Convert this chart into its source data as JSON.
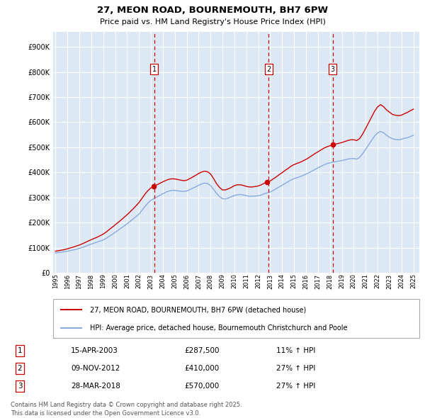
{
  "title": "27, MEON ROAD, BOURNEMOUTH, BH7 6PW",
  "subtitle": "Price paid vs. HM Land Registry's House Price Index (HPI)",
  "ytick_vals": [
    0,
    100000,
    200000,
    300000,
    400000,
    500000,
    600000,
    700000,
    800000,
    900000
  ],
  "ylim": [
    0,
    960000
  ],
  "xlim_start": 1994.8,
  "xlim_end": 2025.5,
  "plot_bg_color": "#dce9f5",
  "grid_color": "#ffffff",
  "sale_points": [
    {
      "num": 1,
      "year": 2003.29,
      "price": 287500,
      "date": "15-APR-2003",
      "pct": "11%",
      "dir": "↑"
    },
    {
      "num": 2,
      "year": 2012.86,
      "price": 410000,
      "date": "09-NOV-2012",
      "pct": "27%",
      "dir": "↑"
    },
    {
      "num": 3,
      "year": 2018.24,
      "price": 570000,
      "date": "28-MAR-2018",
      "pct": "27%",
      "dir": "↑"
    }
  ],
  "line_color_price": "#cc0000",
  "line_color_hpi": "#88aadd",
  "legend_label_price": "27, MEON ROAD, BOURNEMOUTH, BH7 6PW (detached house)",
  "legend_label_hpi": "HPI: Average price, detached house, Bournemouth Christchurch and Poole",
  "footer_text": "Contains HM Land Registry data © Crown copyright and database right 2025.\nThis data is licensed under the Open Government Licence v3.0.",
  "hpi_years": [
    1995.0,
    1995.25,
    1995.5,
    1995.75,
    1996.0,
    1996.25,
    1996.5,
    1996.75,
    1997.0,
    1997.25,
    1997.5,
    1997.75,
    1998.0,
    1998.25,
    1998.5,
    1998.75,
    1999.0,
    1999.25,
    1999.5,
    1999.75,
    2000.0,
    2000.25,
    2000.5,
    2000.75,
    2001.0,
    2001.25,
    2001.5,
    2001.75,
    2002.0,
    2002.25,
    2002.5,
    2002.75,
    2003.0,
    2003.25,
    2003.5,
    2003.75,
    2004.0,
    2004.25,
    2004.5,
    2004.75,
    2005.0,
    2005.25,
    2005.5,
    2005.75,
    2006.0,
    2006.25,
    2006.5,
    2006.75,
    2007.0,
    2007.25,
    2007.5,
    2007.75,
    2008.0,
    2008.25,
    2008.5,
    2008.75,
    2009.0,
    2009.25,
    2009.5,
    2009.75,
    2010.0,
    2010.25,
    2010.5,
    2010.75,
    2011.0,
    2011.25,
    2011.5,
    2011.75,
    2012.0,
    2012.25,
    2012.5,
    2012.75,
    2013.0,
    2013.25,
    2013.5,
    2013.75,
    2014.0,
    2014.25,
    2014.5,
    2014.75,
    2015.0,
    2015.25,
    2015.5,
    2015.75,
    2016.0,
    2016.25,
    2016.5,
    2016.75,
    2017.0,
    2017.25,
    2017.5,
    2017.75,
    2018.0,
    2018.25,
    2018.5,
    2018.75,
    2019.0,
    2019.25,
    2019.5,
    2019.75,
    2020.0,
    2020.25,
    2020.5,
    2020.75,
    2021.0,
    2021.25,
    2021.5,
    2021.75,
    2022.0,
    2022.25,
    2022.5,
    2022.75,
    2023.0,
    2023.25,
    2023.5,
    2023.75,
    2024.0,
    2024.25,
    2024.5,
    2024.75,
    2025.0
  ],
  "hpi_values": [
    79000,
    80500,
    82000,
    84000,
    86000,
    88500,
    91000,
    94000,
    97000,
    101000,
    105500,
    110000,
    114500,
    118500,
    122500,
    126500,
    130500,
    137500,
    145000,
    153000,
    161000,
    169500,
    178000,
    186500,
    195000,
    204500,
    214000,
    224000,
    234000,
    249000,
    264000,
    278000,
    289000,
    296000,
    302000,
    308500,
    315000,
    321000,
    325500,
    328500,
    328500,
    326500,
    325000,
    324000,
    326000,
    331000,
    337000,
    342500,
    348500,
    354000,
    357500,
    355500,
    347500,
    333000,
    316500,
    303500,
    295000,
    294500,
    298000,
    303000,
    308000,
    311000,
    312000,
    310000,
    307000,
    305000,
    305000,
    306000,
    307000,
    310000,
    315000,
    318500,
    322000,
    328000,
    335000,
    342000,
    349000,
    356000,
    363000,
    370000,
    375000,
    379000,
    383000,
    388000,
    393000,
    399000,
    405000,
    412000,
    418000,
    424000,
    430000,
    435000,
    438000,
    441000,
    443000,
    445000,
    447000,
    450000,
    453000,
    455000,
    455000,
    453000,
    460000,
    475000,
    492000,
    510000,
    528000,
    545000,
    557000,
    563000,
    558000,
    548000,
    540000,
    534000,
    531000,
    530000,
    532000,
    536000,
    538000,
    543000,
    548000
  ],
  "price_years": [
    1995.0,
    1995.25,
    1995.5,
    1995.75,
    1996.0,
    1996.25,
    1996.5,
    1996.75,
    1997.0,
    1997.25,
    1997.5,
    1997.75,
    1998.0,
    1998.25,
    1998.5,
    1998.75,
    1999.0,
    1999.25,
    1999.5,
    1999.75,
    2000.0,
    2000.25,
    2000.5,
    2000.75,
    2001.0,
    2001.25,
    2001.5,
    2001.75,
    2002.0,
    2002.25,
    2002.5,
    2002.75,
    2003.0,
    2003.25,
    2003.5,
    2003.75,
    2004.0,
    2004.25,
    2004.5,
    2004.75,
    2005.0,
    2005.25,
    2005.5,
    2005.75,
    2006.0,
    2006.25,
    2006.5,
    2006.75,
    2007.0,
    2007.25,
    2007.5,
    2007.75,
    2008.0,
    2008.25,
    2008.5,
    2008.75,
    2009.0,
    2009.25,
    2009.5,
    2009.75,
    2010.0,
    2010.25,
    2010.5,
    2010.75,
    2011.0,
    2011.25,
    2011.5,
    2011.75,
    2012.0,
    2012.25,
    2012.5,
    2012.75,
    2013.0,
    2013.25,
    2013.5,
    2013.75,
    2014.0,
    2014.25,
    2014.5,
    2014.75,
    2015.0,
    2015.25,
    2015.5,
    2015.75,
    2016.0,
    2016.25,
    2016.5,
    2016.75,
    2017.0,
    2017.25,
    2017.5,
    2017.75,
    2018.0,
    2018.25,
    2018.5,
    2018.75,
    2019.0,
    2019.25,
    2019.5,
    2019.75,
    2020.0,
    2020.25,
    2020.5,
    2020.75,
    2021.0,
    2021.25,
    2021.5,
    2021.75,
    2022.0,
    2022.25,
    2022.5,
    2022.75,
    2023.0,
    2023.25,
    2023.5,
    2023.75,
    2024.0,
    2024.25,
    2024.5,
    2024.75,
    2025.0
  ],
  "price_values": [
    86000,
    88000,
    90000,
    92500,
    95500,
    99000,
    102500,
    106500,
    110500,
    115500,
    121000,
    126500,
    132000,
    137000,
    142000,
    148000,
    154000,
    162500,
    172000,
    181500,
    191000,
    200500,
    210500,
    221000,
    231500,
    242500,
    254500,
    267000,
    280000,
    296500,
    313500,
    327500,
    338500,
    345000,
    350500,
    356500,
    362500,
    368000,
    372500,
    374500,
    374000,
    371500,
    369000,
    367000,
    369000,
    375000,
    381500,
    388500,
    395500,
    401500,
    405000,
    402500,
    393500,
    375500,
    355000,
    340000,
    330000,
    330500,
    334500,
    340500,
    347500,
    350500,
    350500,
    348000,
    344000,
    342000,
    342000,
    344000,
    346000,
    350500,
    357000,
    361000,
    366000,
    374000,
    382000,
    391000,
    399000,
    408000,
    416000,
    425000,
    431000,
    436000,
    440000,
    446000,
    452000,
    459000,
    467000,
    475000,
    482000,
    489500,
    496500,
    502000,
    506000,
    510000,
    513000,
    516000,
    519000,
    523000,
    527000,
    530000,
    530000,
    527000,
    535000,
    553000,
    575000,
    598000,
    621000,
    644000,
    661000,
    670000,
    662000,
    649000,
    640000,
    631000,
    628000,
    626000,
    628000,
    634000,
    639000,
    646000,
    652000
  ]
}
